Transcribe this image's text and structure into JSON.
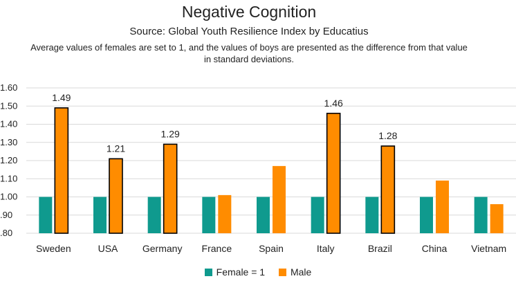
{
  "chart_data": {
    "type": "bar",
    "title": "Negative Cognition",
    "subtitle": "Source: Global Youth Resilience Index by Educatius",
    "note": "Average values of females are set to 1, and the values of boys are presented as the difference from that value in standard deviations.",
    "categories": [
      "Sweden",
      "USA",
      "Germany",
      "France",
      "Spain",
      "Italy",
      "Brazil",
      "China",
      "Vietnam"
    ],
    "series": [
      {
        "name": "Female = 1",
        "color": "#0f9a8e",
        "values": [
          1.0,
          1.0,
          1.0,
          1.0,
          1.0,
          1.0,
          1.0,
          1.0,
          1.0
        ]
      },
      {
        "name": "Male",
        "color": "#ff8c00",
        "values": [
          1.49,
          1.21,
          1.29,
          1.01,
          1.17,
          1.46,
          1.28,
          1.09,
          0.96
        ]
      }
    ],
    "data_labels": {
      "Sweden": "1.49",
      "USA": "1.21",
      "Germany": "1.29",
      "Italy": "1.46",
      "Brazil": "1.28"
    },
    "highlighted": [
      "Sweden",
      "USA",
      "Germany",
      "Italy",
      "Brazil"
    ],
    "y_ticks": [
      ".80",
      ".90",
      "1.00",
      "1.10",
      "1.20",
      "1.30",
      "1.40",
      "1.50",
      "1.60"
    ],
    "ylim": [
      0.8,
      1.6
    ],
    "grid": true,
    "legend_position": "bottom"
  }
}
